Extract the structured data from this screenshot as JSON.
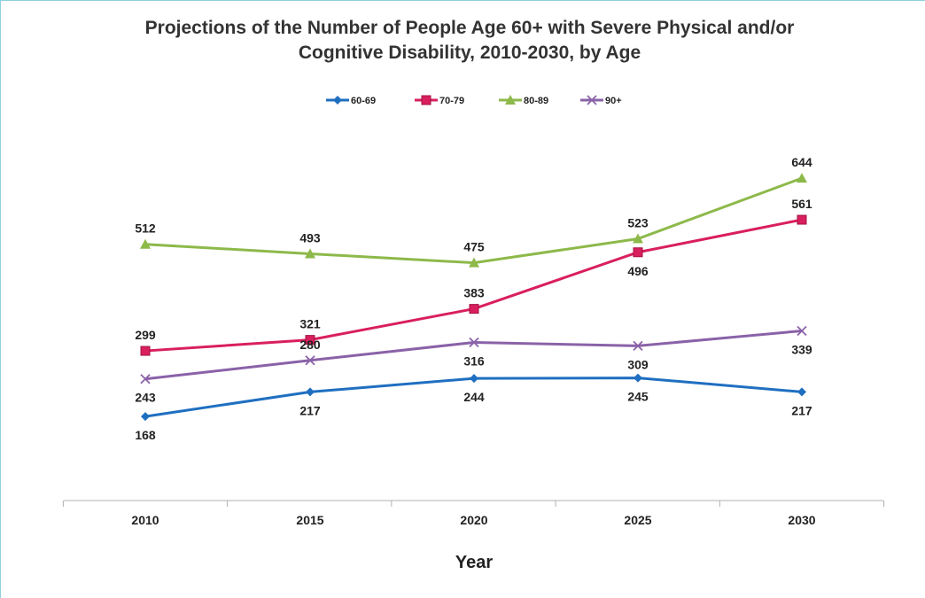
{
  "chart_data": {
    "type": "line",
    "title_line1": "Projections of the Number of People Age 60+ with Severe Physical and/or",
    "title_line2": "Cognitive Disability, 2010-2030, by Age",
    "xlabel": "Year",
    "ylabel": "",
    "x": [
      "2010",
      "2015",
      "2020",
      "2025",
      "2030"
    ],
    "ylim": [
      0,
      800
    ],
    "grid": false,
    "legend_position": "top",
    "series": [
      {
        "name": "60-69",
        "color": "#1f6fc1",
        "marker": "diamond",
        "values": [
          168,
          217,
          244,
          245,
          217
        ],
        "label_pos": [
          "below",
          "below",
          "below",
          "below",
          "below"
        ]
      },
      {
        "name": "70-79",
        "color": "#d91f5e",
        "marker": "square",
        "values": [
          299,
          321,
          383,
          496,
          561
        ],
        "label_pos": [
          "above",
          "above",
          "above",
          "below",
          "above"
        ]
      },
      {
        "name": "80-89",
        "color": "#8db94a",
        "marker": "triangle",
        "values": [
          512,
          493,
          475,
          523,
          644
        ],
        "label_pos": [
          "above",
          "above",
          "above",
          "above",
          "above"
        ]
      },
      {
        "name": "90+",
        "color": "#8a62a8",
        "marker": "x",
        "values": [
          243,
          280,
          316,
          309,
          339
        ],
        "label_pos": [
          "below",
          "above",
          "below",
          "below",
          "below"
        ]
      }
    ]
  }
}
